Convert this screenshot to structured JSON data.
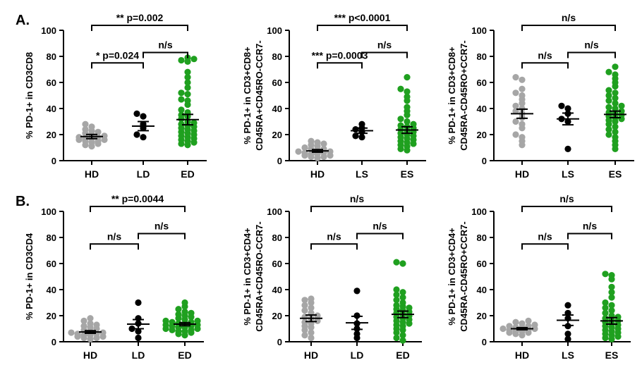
{
  "row_labels": [
    "A.",
    "B."
  ],
  "colors": {
    "HD": "#a6a6a6",
    "LD": "#000000",
    "LS": "#000000",
    "ED": "#1fa01f",
    "ES": "#1fa01f"
  },
  "chart_data": [
    {
      "type": "scatter",
      "ylabel": [
        "% PD-1+ in CD3CD8"
      ],
      "ylim": [
        0,
        100
      ],
      "yticks": [
        0,
        20,
        40,
        60,
        80,
        100
      ],
      "categories": [
        "HD",
        "LD",
        "ED"
      ],
      "groups": [
        {
          "name": "HD",
          "mean": 18.5,
          "sem": 1.6,
          "values": [
            11,
            12,
            13,
            14,
            15,
            15,
            16,
            16,
            17,
            17,
            18,
            18,
            19,
            20,
            21,
            22,
            23,
            24,
            26,
            28
          ]
        },
        {
          "name": "LD",
          "mean": 26.5,
          "sem": 3.5,
          "values": [
            18,
            20,
            25,
            28,
            34,
            36
          ]
        },
        {
          "name": "ED",
          "mean": 31.5,
          "sem": 4.0,
          "values": [
            12,
            13,
            14,
            15,
            16,
            17,
            18,
            19,
            20,
            21,
            22,
            23,
            24,
            25,
            26,
            27,
            28,
            29,
            30,
            32,
            34,
            35,
            37,
            39,
            43,
            46,
            47,
            51,
            52,
            56,
            60,
            64,
            68,
            76,
            77,
            78,
            79
          ]
        }
      ],
      "comparisons": [
        {
          "from": "HD",
          "to": "ED",
          "label": "** p=0.002"
        },
        {
          "from": "HD",
          "to": "LD",
          "label": "* p=0.024"
        },
        {
          "from": "LD",
          "to": "ED",
          "label": "n/s"
        }
      ]
    },
    {
      "type": "scatter",
      "ylabel": [
        "% PD-1+ in CD3+CD8+",
        "CD45RA+CD45RO-CCR7-"
      ],
      "ylim": [
        0,
        100
      ],
      "yticks": [
        0,
        20,
        40,
        60,
        80,
        100
      ],
      "categories": [
        "HD",
        "LS",
        "ES"
      ],
      "groups": [
        {
          "name": "HD",
          "mean": 7.5,
          "sem": 1.0,
          "values": [
            2,
            3,
            3,
            4,
            4,
            5,
            5,
            6,
            6,
            7,
            7,
            8,
            9,
            9,
            10,
            11,
            12,
            13,
            14,
            15
          ]
        },
        {
          "name": "LS",
          "mean": 23.0,
          "sem": 2.0,
          "values": [
            18,
            19,
            22,
            24,
            25,
            28
          ]
        },
        {
          "name": "ES",
          "mean": 23.5,
          "sem": 2.5,
          "values": [
            8,
            9,
            11,
            12,
            13,
            14,
            15,
            16,
            17,
            18,
            19,
            20,
            21,
            22,
            23,
            24,
            25,
            26,
            27,
            28,
            30,
            32,
            35,
            38,
            41,
            46,
            49,
            53,
            55,
            64
          ]
        }
      ],
      "comparisons": [
        {
          "from": "HD",
          "to": "ES",
          "label": "*** p<0.0001"
        },
        {
          "from": "HD",
          "to": "LS",
          "label": "*** p=0.0003"
        },
        {
          "from": "LS",
          "to": "ES",
          "label": "n/s"
        }
      ]
    },
    {
      "type": "scatter",
      "ylabel": [
        "% PD-1+ in CD3+CD8+",
        "CD45RA-CD45RO+CCR7-"
      ],
      "ylim": [
        0,
        100
      ],
      "yticks": [
        0,
        20,
        40,
        60,
        80,
        100
      ],
      "categories": [
        "HD",
        "LS",
        "ES"
      ],
      "groups": [
        {
          "name": "HD",
          "mean": 36.0,
          "sem": 3.5,
          "values": [
            12,
            15,
            18,
            20,
            25,
            28,
            30,
            33,
            36,
            38,
            40,
            42,
            44,
            47,
            50,
            52,
            55,
            62,
            64
          ]
        },
        {
          "name": "LS",
          "mean": 32.0,
          "sem": 4.5,
          "values": [
            9,
            30,
            32,
            36,
            40,
            42
          ]
        },
        {
          "name": "ES",
          "mean": 35.5,
          "sem": 2.5,
          "values": [
            9,
            12,
            15,
            18,
            20,
            22,
            24,
            26,
            28,
            30,
            31,
            32,
            33,
            34,
            35,
            36,
            37,
            38,
            40,
            41,
            42,
            44,
            46,
            48,
            50,
            52,
            54,
            57,
            60,
            63,
            66,
            68,
            72
          ]
        }
      ],
      "comparisons": [
        {
          "from": "HD",
          "to": "ES",
          "label": "n/s"
        },
        {
          "from": "HD",
          "to": "LS",
          "label": "n/s"
        },
        {
          "from": "LS",
          "to": "ES",
          "label": "n/s"
        }
      ]
    },
    {
      "type": "scatter",
      "ylabel": [
        "% PD-1+ in CD3CD4"
      ],
      "ylim": [
        0,
        100
      ],
      "yticks": [
        0,
        20,
        40,
        60,
        80,
        100
      ],
      "categories": [
        "HD",
        "LD",
        "ED"
      ],
      "groups": [
        {
          "name": "HD",
          "mean": 7.5,
          "sem": 1.0,
          "values": [
            2,
            3,
            3,
            4,
            4,
            5,
            5,
            6,
            6,
            7,
            7,
            8,
            9,
            10,
            11,
            12,
            13,
            14,
            16,
            18
          ]
        },
        {
          "name": "LD",
          "mean": 13.5,
          "sem": 3.5,
          "values": [
            3,
            8,
            10,
            14,
            18,
            30
          ]
        },
        {
          "name": "ED",
          "mean": 13.5,
          "sem": 1.2,
          "values": [
            5,
            6,
            7,
            8,
            8,
            9,
            9,
            10,
            10,
            11,
            11,
            12,
            12,
            13,
            13,
            14,
            14,
            15,
            15,
            16,
            16,
            17,
            18,
            19,
            20,
            21,
            22,
            23,
            25,
            27,
            30
          ]
        }
      ],
      "comparisons": [
        {
          "from": "HD",
          "to": "ED",
          "label": "** p=0.0044"
        },
        {
          "from": "HD",
          "to": "LD",
          "label": "n/s"
        },
        {
          "from": "LD",
          "to": "ED",
          "label": "n/s"
        }
      ]
    },
    {
      "type": "scatter",
      "ylabel": [
        "% PD-1+ in CD3+CD4+",
        "CD45RA+CD45RO-CCR7-"
      ],
      "ylim": [
        0,
        100
      ],
      "yticks": [
        0,
        20,
        40,
        60,
        80,
        100
      ],
      "categories": [
        "HD",
        "LD",
        "ED"
      ],
      "groups": [
        {
          "name": "HD",
          "mean": 18.0,
          "sem": 2.5,
          "values": [
            3,
            5,
            7,
            9,
            11,
            12,
            14,
            15,
            16,
            18,
            19,
            20,
            22,
            24,
            26,
            28,
            30,
            32,
            33
          ]
        },
        {
          "name": "LD",
          "mean": 14.5,
          "sem": 5.0,
          "values": [
            3,
            6,
            10,
            14,
            20,
            39
          ]
        },
        {
          "name": "ED",
          "mean": 21.0,
          "sem": 2.5,
          "values": [
            1,
            3,
            5,
            7,
            9,
            10,
            12,
            13,
            14,
            15,
            16,
            17,
            18,
            19,
            20,
            21,
            22,
            23,
            24,
            25,
            26,
            27,
            28,
            30,
            32,
            34,
            36,
            38,
            40,
            60,
            61
          ]
        }
      ],
      "comparisons": [
        {
          "from": "HD",
          "to": "ED",
          "label": "n/s"
        },
        {
          "from": "HD",
          "to": "LD",
          "label": "n/s"
        },
        {
          "from": "LD",
          "to": "ED",
          "label": "n/s"
        }
      ]
    },
    {
      "type": "scatter",
      "ylabel": [
        "% PD-1+ in CD3+CD4+",
        "CD45RA-CD45RO+CCR7-"
      ],
      "ylim": [
        0,
        100
      ],
      "yticks": [
        0,
        20,
        40,
        60,
        80,
        100
      ],
      "categories": [
        "HD",
        "LS",
        "ES"
      ],
      "groups": [
        {
          "name": "HD",
          "mean": 10.0,
          "sem": 0.8,
          "values": [
            5,
            6,
            7,
            7,
            8,
            8,
            9,
            9,
            10,
            10,
            11,
            11,
            12,
            12,
            13,
            14,
            15,
            16
          ]
        },
        {
          "name": "LS",
          "mean": 16.5,
          "sem": 4.0,
          "values": [
            2,
            6,
            12,
            18,
            22,
            28
          ]
        },
        {
          "name": "ES",
          "mean": 16.0,
          "sem": 2.5,
          "values": [
            2,
            3,
            4,
            5,
            6,
            7,
            8,
            9,
            10,
            11,
            12,
            13,
            14,
            15,
            16,
            17,
            18,
            19,
            20,
            22,
            24,
            26,
            28,
            30,
            34,
            38,
            42,
            48,
            51,
            52
          ]
        }
      ],
      "comparisons": [
        {
          "from": "HD",
          "to": "ES",
          "label": "n/s"
        },
        {
          "from": "HD",
          "to": "LS",
          "label": "n/s"
        },
        {
          "from": "LS",
          "to": "ES",
          "label": "n/s"
        }
      ]
    }
  ]
}
